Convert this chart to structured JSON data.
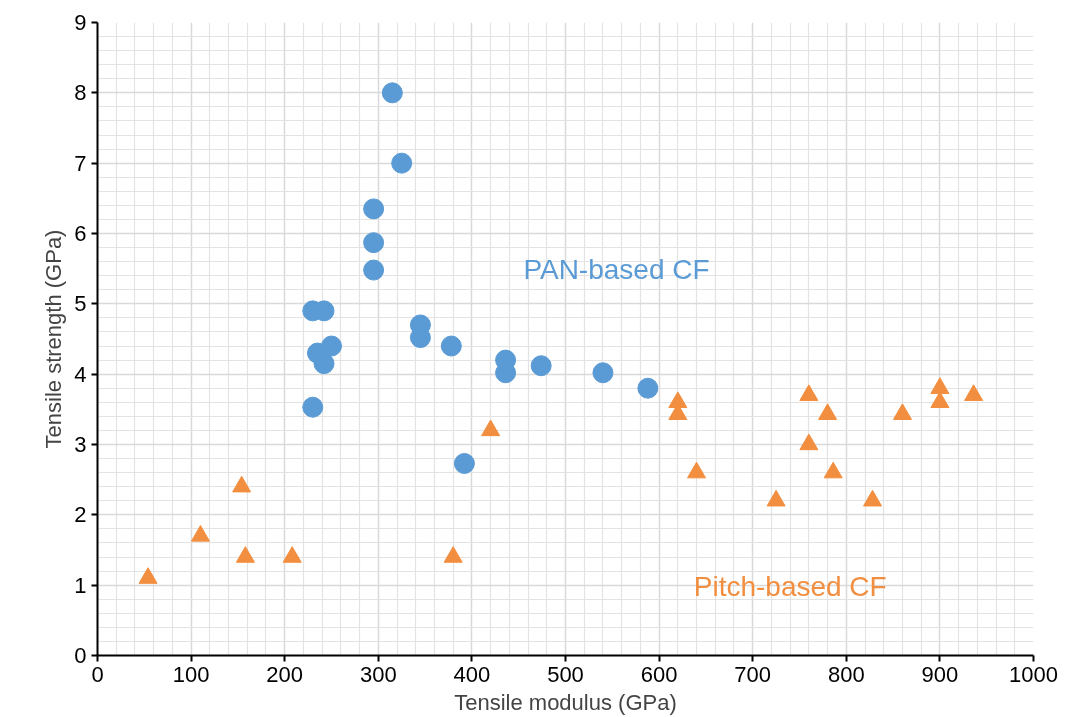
{
  "chart_data": {
    "type": "scatter",
    "xlabel": "Tensile modulus (GPa)",
    "ylabel": "Tensile strength (GPa)",
    "xlim": [
      0,
      1000
    ],
    "ylim": [
      0,
      9
    ],
    "xticks": [
      0,
      100,
      200,
      300,
      400,
      500,
      600,
      700,
      800,
      900,
      1000
    ],
    "yticks": [
      0,
      1,
      2,
      3,
      4,
      5,
      6,
      7,
      8,
      9
    ],
    "grid": true,
    "series": [
      {
        "name": "PAN-based CF",
        "color": "#5b9bd5",
        "marker": "circle",
        "x": [
          230,
          242,
          235,
          250,
          242,
          230,
          295,
          295,
          295,
          315,
          325,
          345,
          345,
          378,
          392,
          436,
          436,
          474,
          540,
          588
        ],
        "values": [
          4.9,
          4.9,
          4.3,
          4.4,
          4.15,
          3.53,
          6.35,
          5.87,
          5.48,
          8.0,
          7.0,
          4.7,
          4.52,
          4.4,
          2.73,
          4.2,
          4.02,
          4.12,
          4.02,
          3.8
        ]
      },
      {
        "name": "Pitch-based CF",
        "color": "#f28e3f",
        "marker": "triangle",
        "x": [
          54,
          110,
          154,
          158,
          208,
          380,
          420,
          620,
          620,
          640,
          725,
          760,
          760,
          780,
          786,
          828,
          860,
          900,
          900,
          936
        ],
        "values": [
          1.1,
          1.7,
          2.4,
          1.4,
          1.4,
          1.4,
          3.2,
          3.6,
          3.43,
          2.6,
          2.2,
          3.7,
          3.0,
          3.43,
          2.6,
          2.2,
          3.43,
          3.8,
          3.6,
          3.7
        ]
      }
    ]
  }
}
